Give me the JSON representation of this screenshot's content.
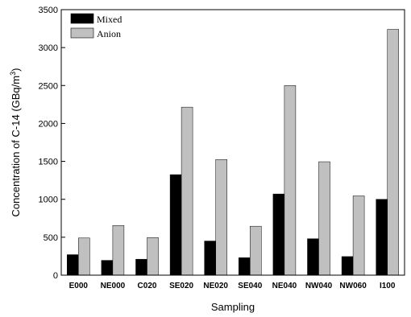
{
  "chart_data": {
    "type": "bar",
    "title": "",
    "xlabel": "Sampling",
    "ylabel_main": "Concentration of C-14 (GBq/m",
    "ylabel_sup": "3",
    "ylabel_tail": ")",
    "ylim": [
      0,
      3500
    ],
    "yticks": [
      "0",
      "500",
      "1000",
      "1500",
      "2000",
      "2500",
      "3000",
      "3500"
    ],
    "categories": [
      "E000",
      "NE000",
      "C020",
      "SE020",
      "NE020",
      "SE040",
      "NE040",
      "NW040",
      "NW060",
      "I100"
    ],
    "series": [
      {
        "name": "Mixed",
        "color": "#000000",
        "values": [
          270,
          195,
          210,
          1325,
          450,
          230,
          1070,
          480,
          245,
          1000
        ]
      },
      {
        "name": "Anion",
        "color": "#c0c0c0",
        "values": [
          490,
          655,
          495,
          2215,
          1525,
          645,
          2500,
          1495,
          1045,
          3240
        ]
      }
    ],
    "legend_position": "top-left",
    "grid": false
  }
}
